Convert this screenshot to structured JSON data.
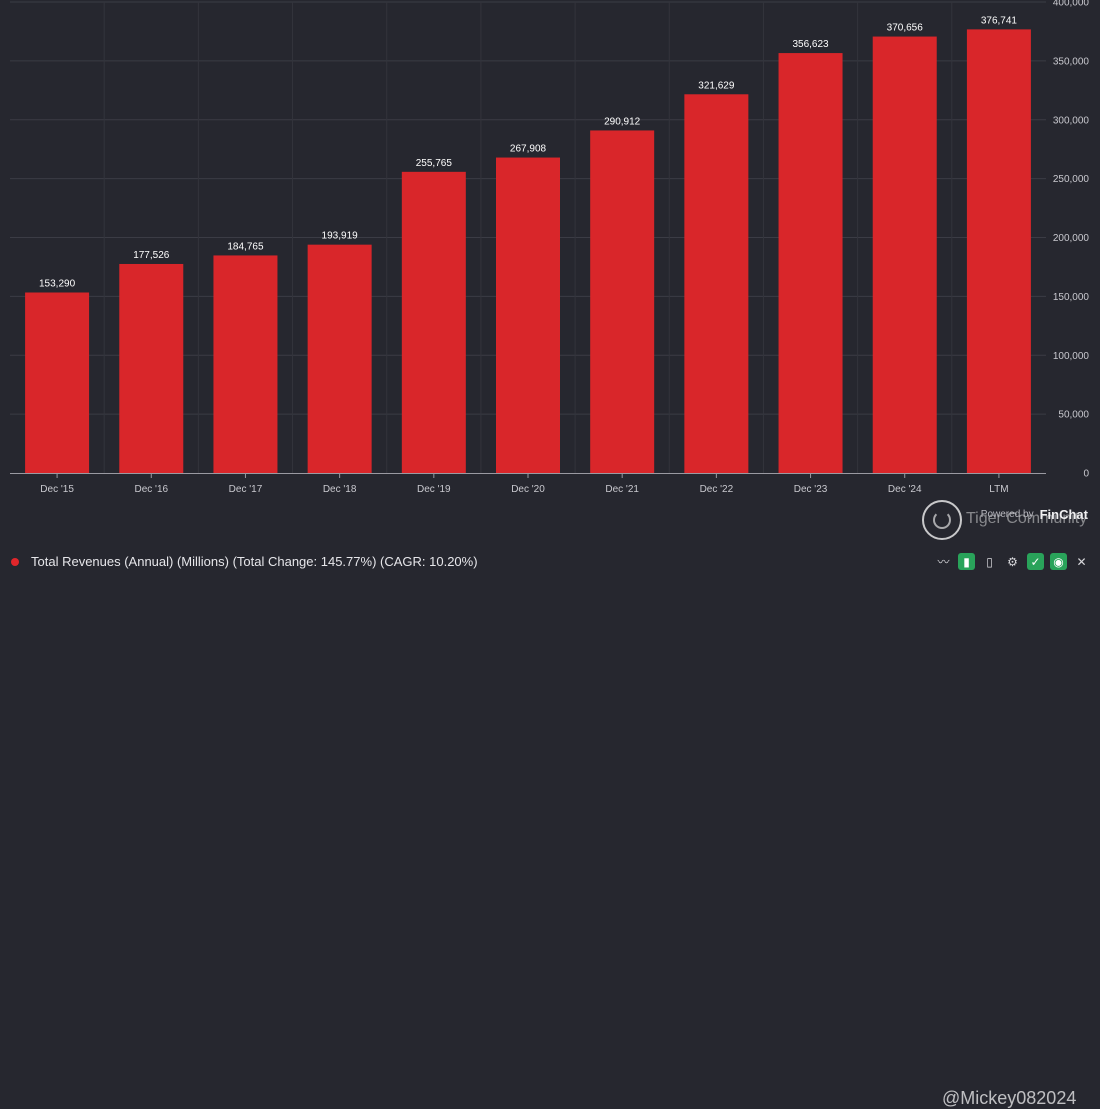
{
  "chart_data": {
    "type": "bar",
    "categories": [
      "Dec '15",
      "Dec '16",
      "Dec '17",
      "Dec '18",
      "Dec '19",
      "Dec '20",
      "Dec '21",
      "Dec '22",
      "Dec '23",
      "Dec '24",
      "LTM"
    ],
    "values": [
      153290,
      177526,
      184765,
      193919,
      255765,
      267908,
      290912,
      321629,
      356623,
      370656,
      376741
    ],
    "value_labels": [
      "153,290",
      "177,526",
      "184,765",
      "193,919",
      "255,765",
      "267,908",
      "290,912",
      "321,629",
      "356,623",
      "370,656",
      "376,741"
    ],
    "y_ticks": [
      "0",
      "50,000",
      "100,000",
      "150,000",
      "200,000",
      "250,000",
      "300,000",
      "350,000",
      "400,000"
    ],
    "ylim": [
      0,
      400000
    ],
    "grid": true,
    "y_axis_side": "right",
    "bar_color": "#d9262a"
  },
  "legend": {
    "label": "Total Revenues (Annual) (Millions) (Total Change: 145.77%) (CAGR: 10.20%)",
    "color": "#e0262b"
  },
  "brand": {
    "powered_by": "Powered by",
    "name": "FinChat"
  },
  "watermark": {
    "name": "Tiger Community",
    "user": "@Mickey082024"
  },
  "toolbar": {
    "icons": [
      "trend-icon",
      "bar-chart-icon",
      "bar-chart-alt-icon",
      "gear-icon",
      "check-icon",
      "eye-icon",
      "close-icon"
    ]
  }
}
